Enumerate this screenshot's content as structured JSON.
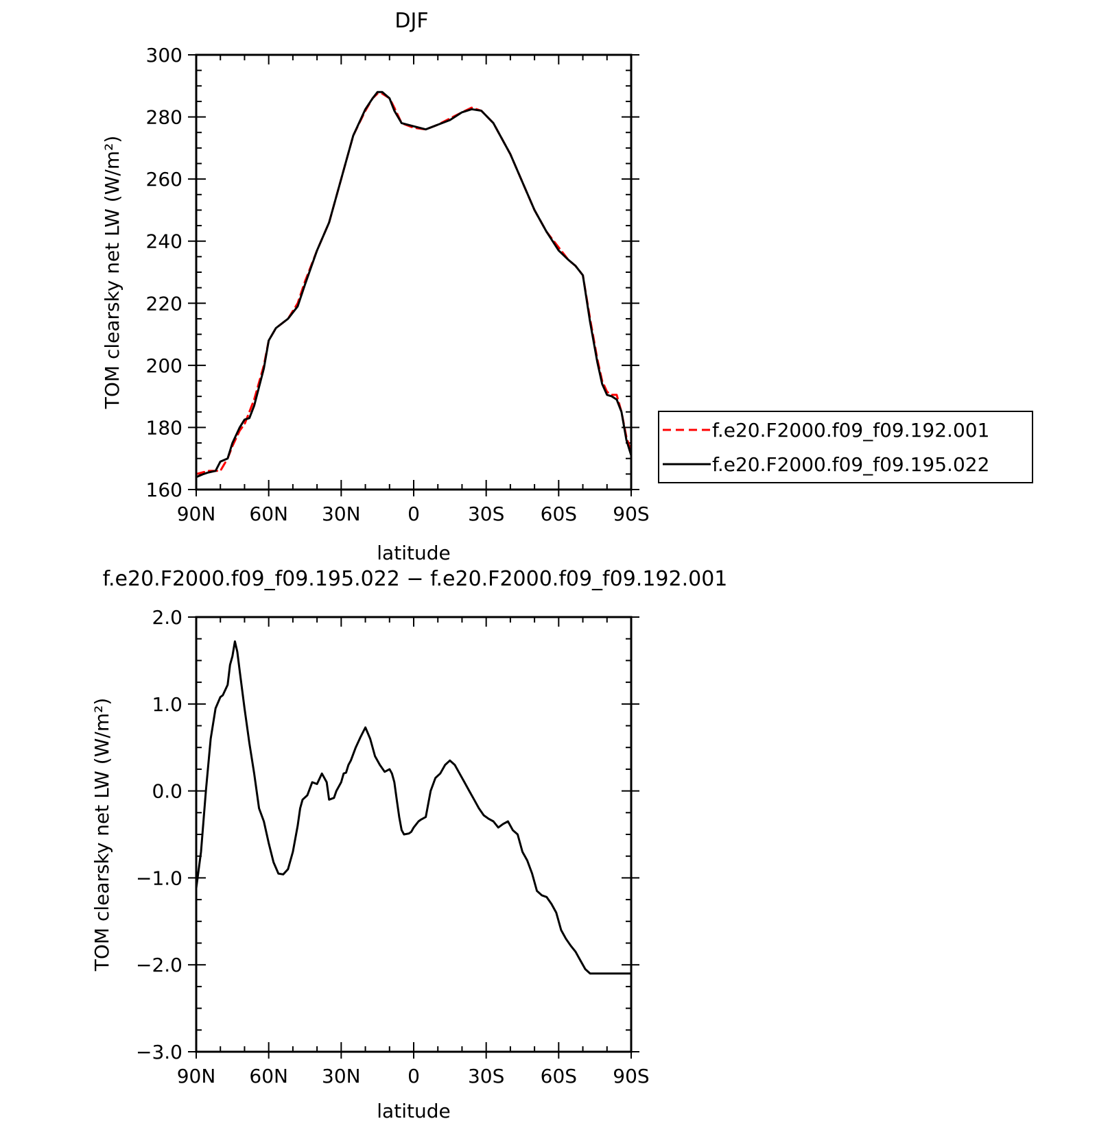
{
  "chart_data": [
    {
      "type": "line",
      "title": "DJF",
      "xlabel": "latitude",
      "ylabel": "TOM clearsky net LW (W/m²)",
      "x_ticks": [
        "90N",
        "60N",
        "30N",
        "0",
        "30S",
        "60S",
        "90S"
      ],
      "xlim": [
        90,
        -90
      ],
      "ylim": [
        160,
        300
      ],
      "y_ticks": [
        "300",
        "280",
        "260",
        "240",
        "220",
        "200",
        "180",
        "160"
      ],
      "legend_position": "right",
      "series": [
        {
          "name": "f.e20.F2000.f09_f09.192.001",
          "color": "#ff0000",
          "style": "dashed",
          "x": [
            90,
            85,
            80,
            77,
            75,
            72,
            70,
            66,
            62,
            60,
            57,
            52,
            48,
            45,
            40,
            35,
            30,
            25,
            20,
            17,
            15,
            13,
            10,
            8,
            5,
            0,
            -5,
            -10,
            -15,
            -20,
            -24,
            -28,
            -33,
            -40,
            -45,
            -50,
            -55,
            -60,
            -64,
            -67,
            -70,
            -73,
            -76,
            -78,
            -80,
            -82,
            -84,
            -86,
            -88,
            -90
          ],
          "y": [
            165,
            166,
            166,
            170,
            174,
            179,
            181,
            189,
            200,
            208,
            212,
            215,
            220,
            227,
            237,
            246,
            260,
            274,
            282,
            286,
            287.5,
            287.5,
            286,
            283,
            278,
            276.5,
            276,
            277.5,
            279.5,
            281.5,
            283,
            282,
            278,
            268,
            259,
            250,
            243,
            238,
            234,
            232,
            229,
            215,
            202,
            195,
            191.5,
            190.5,
            190.5,
            185,
            177,
            172
          ]
        },
        {
          "name": "f.e20.F2000.f09_f09.195.022",
          "color": "#000000",
          "style": "solid",
          "x": [
            90,
            87,
            85,
            82,
            80,
            77,
            75,
            72,
            70,
            68,
            66,
            62,
            60,
            57,
            52,
            48,
            45,
            40,
            35,
            30,
            25,
            20,
            17,
            15,
            13,
            10,
            8,
            5,
            0,
            -5,
            -10,
            -15,
            -20,
            -24,
            -28,
            -33,
            -40,
            -45,
            -50,
            -55,
            -60,
            -64,
            -67,
            -70,
            -73,
            -76,
            -78,
            -80,
            -82,
            -84,
            -86,
            -88,
            -90
          ],
          "y": [
            164,
            165,
            165.5,
            166,
            169,
            170,
            175,
            180,
            182.5,
            183,
            187,
            199,
            208,
            212,
            215,
            219,
            226,
            237,
            246,
            260,
            274,
            282.5,
            286,
            288,
            288,
            286,
            282,
            278,
            277,
            276,
            277.5,
            279,
            281.5,
            282.5,
            282,
            278,
            268,
            259,
            250,
            243,
            237,
            234,
            232,
            229,
            214,
            201,
            194,
            190.5,
            190,
            189,
            185,
            176,
            171
          ]
        }
      ]
    },
    {
      "type": "line",
      "title": "f.e20.F2000.f09_f09.195.022 − f.e20.F2000.f09_f09.192.001",
      "xlabel": "latitude",
      "ylabel": "TOM clearsky net LW (W/m²)",
      "x_ticks": [
        "90N",
        "60N",
        "30N",
        "0",
        "30S",
        "60S",
        "90S"
      ],
      "xlim": [
        90,
        -90
      ],
      "ylim": [
        -3,
        2
      ],
      "y_ticks": [
        "2.0",
        "1.0",
        "0.0",
        "−1.0",
        "−2.0",
        "−3.0"
      ],
      "series": [
        {
          "color": "#000000",
          "style": "solid",
          "x": [
            90,
            88,
            86,
            84,
            82,
            80,
            79,
            77,
            76,
            75,
            74,
            73,
            72,
            70,
            68,
            66,
            64,
            62,
            60,
            58,
            56,
            54,
            52,
            50,
            48,
            47,
            46,
            44,
            42,
            40,
            38,
            36,
            35,
            33,
            32,
            30,
            29,
            28,
            27,
            26,
            24,
            22,
            20,
            18,
            16,
            14,
            12,
            10,
            9,
            8,
            7,
            6,
            5,
            4,
            2,
            1,
            0,
            -2,
            -3,
            -5,
            -7,
            -9,
            -11,
            -13,
            -15,
            -17,
            -19,
            -21,
            -23,
            -25,
            -27,
            -29,
            -31,
            -33,
            -35,
            -37,
            -39,
            -41,
            -43,
            -45,
            -47,
            -49,
            -51,
            -53,
            -55,
            -57,
            -59,
            -61,
            -63,
            -65,
            -67,
            -69,
            -71,
            -73,
            -75,
            -77,
            -78,
            -80,
            -82,
            -83,
            -85,
            -86,
            -88,
            -90
          ],
          "y": [
            -1.12,
            -0.7,
            0.0,
            0.6,
            0.95,
            1.08,
            1.1,
            1.22,
            1.45,
            1.55,
            1.72,
            1.6,
            1.38,
            0.95,
            0.55,
            0.2,
            -0.2,
            -0.35,
            -0.6,
            -0.82,
            -0.95,
            -0.96,
            -0.9,
            -0.7,
            -0.4,
            -0.2,
            -0.1,
            -0.05,
            0.1,
            0.08,
            0.2,
            0.1,
            -0.1,
            -0.08,
            0.0,
            0.1,
            0.2,
            0.21,
            0.3,
            0.35,
            0.5,
            0.62,
            0.73,
            0.6,
            0.4,
            0.3,
            0.22,
            0.25,
            0.2,
            0.1,
            -0.1,
            -0.3,
            -0.45,
            -0.5,
            -0.49,
            -0.47,
            -0.42,
            -0.35,
            -0.33,
            -0.3,
            0.0,
            0.15,
            0.2,
            0.3,
            0.35,
            0.3,
            0.2,
            0.1,
            0.0,
            -0.1,
            -0.2,
            -0.28,
            -0.32,
            -0.35,
            -0.42,
            -0.38,
            -0.35,
            -0.45,
            -0.5,
            -0.7,
            -0.8,
            -0.95,
            -1.15,
            -1.2,
            -1.22,
            -1.3,
            -1.4,
            -1.6,
            -1.7,
            -1.78,
            -1.85,
            -1.95,
            -2.05,
            -2.1,
            -2.1,
            -2.1,
            -2.1,
            -2.1,
            -2.1,
            -2.1,
            -2.1,
            -2.1,
            -2.1,
            -2.1
          ]
        }
      ]
    }
  ]
}
